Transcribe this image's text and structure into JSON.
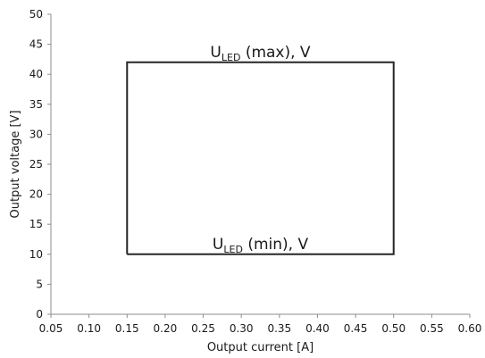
{
  "chart_data": {
    "type": "line",
    "title": "",
    "xlabel": "Output current [A]",
    "ylabel": "Output voltage [V]",
    "xlim": [
      0.05,
      0.6
    ],
    "ylim": [
      0,
      50
    ],
    "x_ticks": [
      "0.05",
      "0.10",
      "0.15",
      "0.20",
      "0.25",
      "0.30",
      "0.35",
      "0.40",
      "0.45",
      "0.50",
      "0.55",
      "0.60"
    ],
    "y_ticks": [
      "0",
      "5",
      "10",
      "15",
      "20",
      "25",
      "30",
      "35",
      "40",
      "45",
      "50"
    ],
    "grid": false,
    "series": [
      {
        "x": [
          0.15,
          0.5,
          0.5,
          0.15,
          0.15
        ],
        "y": [
          10,
          10,
          42,
          42,
          10
        ],
        "color": "#262626"
      }
    ],
    "annotations": [
      {
        "id": "max",
        "x": 0.325,
        "y": 42,
        "main": "U",
        "sub": "LED",
        "rest": " (max), V"
      },
      {
        "id": "min",
        "x": 0.325,
        "y": 10,
        "main": "U",
        "sub": "LED",
        "rest": " (min), V"
      }
    ]
  }
}
